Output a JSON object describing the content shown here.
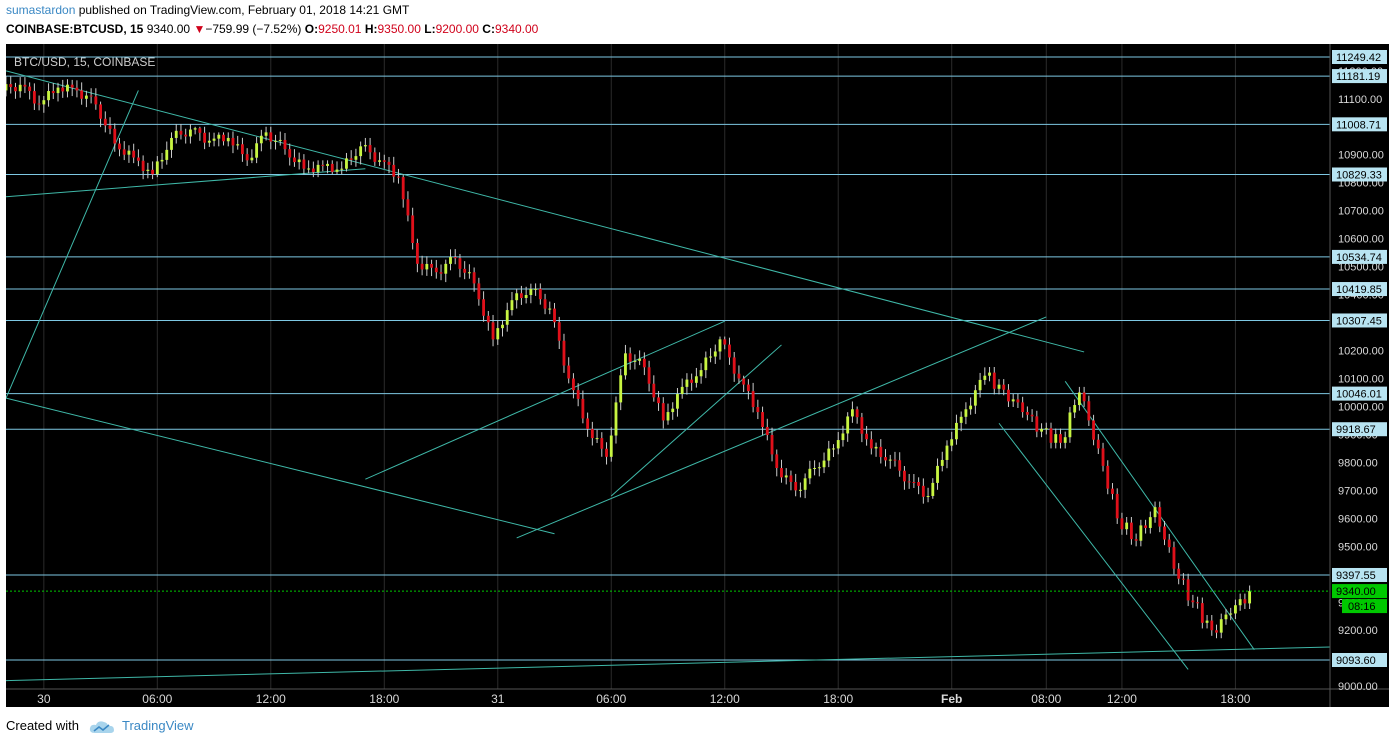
{
  "header": {
    "author": "sumastardon",
    "published_text": " published on TradingView.com, February 01, 2018 14:21 GMT",
    "symbol": "COINBASE:BTCUSD, 15",
    "last": "9340.00",
    "change_arrow": "▼",
    "change": "−759.99 (−7.52%)",
    "o_label": "O:",
    "o_value": "9250.01",
    "h_label": "H:",
    "h_value": "9350.00",
    "l_label": "L:",
    "l_value": "9200.00",
    "c_label": "C:",
    "c_value": "9340.00"
  },
  "footer": {
    "created_with": "Created with",
    "brand": "TradingView"
  },
  "colors": {
    "background": "#000000",
    "grid": "#2b2b2b",
    "hline": "#7ec8e3",
    "trendline": "#3fb8a8",
    "up_candle": "#c8f542",
    "down_candle": "#e0101a",
    "wick": "#cccccc",
    "price_line": "#00c800",
    "label_bg": "#b8e4f2"
  },
  "chart_data": {
    "type": "candlestick",
    "title": "BTC/USD, 15, COINBASE",
    "ylim": [
      9000,
      11300
    ],
    "y_ticks": [
      9000,
      9200,
      9300,
      9400,
      9500,
      9600,
      9700,
      9800,
      9900,
      10000,
      10100,
      10200,
      10300,
      10400,
      10500,
      10600,
      10700,
      10800,
      10900,
      11000,
      11100,
      11200
    ],
    "y_tick_labels": [
      "9000.00",
      "9200.00",
      "9300.00",
      "9400.00",
      "9500.00",
      "9600.00",
      "9700.00",
      "9800.00",
      "9900.00",
      "10000.00",
      "10100.00",
      "10200.00",
      "10300.00",
      "10400.00",
      "10500.00",
      "10600.00",
      "10700.00",
      "10800.00",
      "10900.00",
      "11000.00",
      "11100.00",
      "11200.00"
    ],
    "x_tick_labels": [
      "30",
      "06:00",
      "12:00",
      "18:00",
      "31",
      "06:00",
      "12:00",
      "18:00",
      "Feb",
      "08:00",
      "12:00",
      "18:00"
    ],
    "x_tick_hours": [
      0,
      6,
      12,
      18,
      24,
      30,
      36,
      42,
      48,
      53,
      57,
      63
    ],
    "x_range_hours": [
      -2,
      68
    ],
    "horizontal_levels": [
      11249.42,
      11181.19,
      11008.71,
      10829.33,
      10534.74,
      10419.85,
      10307.45,
      10046.01,
      9918.67,
      9397.55,
      9093.6
    ],
    "horizontal_level_labels": [
      "11249.42",
      "11181.19",
      "11008.71",
      "10829.33",
      "10534.74",
      "10419.85",
      "10307.45",
      "10046.01",
      "9918.67",
      "9397.55",
      "9093.60"
    ],
    "last_price": 9340.0,
    "last_price_label": "9340.00",
    "countdown_label": "08:16",
    "trendlines": [
      {
        "h1": -2,
        "p1": 11200,
        "h2": 55,
        "p2": 10195
      },
      {
        "h1": -2,
        "p1": 10750,
        "h2": 17,
        "p2": 10850
      },
      {
        "h1": -2,
        "p1": 10030,
        "h2": 27,
        "p2": 9545
      },
      {
        "h1": -2,
        "p1": 10030,
        "h2": 5,
        "p2": 11130
      },
      {
        "h1": 25,
        "p1": 9530,
        "h2": 53,
        "p2": 10320
      },
      {
        "h1": 17,
        "p1": 9740,
        "h2": 36,
        "p2": 10305
      },
      {
        "h1": 30,
        "p1": 9680,
        "h2": 39,
        "p2": 10220
      },
      {
        "h1": 50.5,
        "p1": 9940,
        "h2": 60.5,
        "p2": 9060
      },
      {
        "h1": 54,
        "p1": 10090,
        "h2": 64,
        "p2": 9130
      },
      {
        "h1": -2,
        "p1": 9020,
        "h2": 68,
        "p2": 9140
      }
    ],
    "candles_hourly": [
      {
        "h": -2,
        "o": 11130,
        "c": 11150,
        "hi": 11200,
        "lo": 11100
      },
      {
        "h": -1,
        "o": 11150,
        "c": 11080,
        "hi": 11180,
        "lo": 11030
      },
      {
        "h": 0,
        "o": 11080,
        "c": 11140,
        "hi": 11170,
        "lo": 11050
      },
      {
        "h": 1,
        "o": 11140,
        "c": 11130,
        "hi": 11170,
        "lo": 11100
      },
      {
        "h": 2,
        "o": 11130,
        "c": 11080,
        "hi": 11160,
        "lo": 11050
      },
      {
        "h": 3,
        "o": 11080,
        "c": 10940,
        "hi": 11090,
        "lo": 10880
      },
      {
        "h": 4,
        "o": 10940,
        "c": 10890,
        "hi": 10960,
        "lo": 10870
      },
      {
        "h": 5,
        "o": 10890,
        "c": 10830,
        "hi": 10920,
        "lo": 10810
      },
      {
        "h": 6,
        "o": 10830,
        "c": 10960,
        "hi": 10980,
        "lo": 10820
      },
      {
        "h": 7,
        "o": 10960,
        "c": 10990,
        "hi": 11010,
        "lo": 10940
      },
      {
        "h": 8,
        "o": 10990,
        "c": 10950,
        "hi": 11000,
        "lo": 10920
      },
      {
        "h": 9,
        "o": 10950,
        "c": 10960,
        "hi": 10980,
        "lo": 10930
      },
      {
        "h": 10,
        "o": 10960,
        "c": 10880,
        "hi": 10990,
        "lo": 10860
      },
      {
        "h": 11,
        "o": 10880,
        "c": 10980,
        "hi": 11000,
        "lo": 10870
      },
      {
        "h": 12,
        "o": 10980,
        "c": 10920,
        "hi": 11000,
        "lo": 10900
      },
      {
        "h": 13,
        "o": 10920,
        "c": 10850,
        "hi": 10940,
        "lo": 10830
      },
      {
        "h": 14,
        "o": 10850,
        "c": 10860,
        "hi": 10880,
        "lo": 10820
      },
      {
        "h": 15,
        "o": 10860,
        "c": 10850,
        "hi": 10880,
        "lo": 10830
      },
      {
        "h": 16,
        "o": 10850,
        "c": 10930,
        "hi": 10960,
        "lo": 10840
      },
      {
        "h": 17,
        "o": 10930,
        "c": 10880,
        "hi": 10960,
        "lo": 10860
      },
      {
        "h": 18,
        "o": 10880,
        "c": 10820,
        "hi": 10900,
        "lo": 10780
      },
      {
        "h": 19,
        "o": 10820,
        "c": 10510,
        "hi": 10830,
        "lo": 10450
      },
      {
        "h": 20,
        "o": 10510,
        "c": 10480,
        "hi": 10560,
        "lo": 10390
      },
      {
        "h": 21,
        "o": 10480,
        "c": 10530,
        "hi": 10570,
        "lo": 10410
      },
      {
        "h": 22,
        "o": 10530,
        "c": 10440,
        "hi": 10560,
        "lo": 10390
      },
      {
        "h": 23,
        "o": 10440,
        "c": 10240,
        "hi": 10460,
        "lo": 10210
      },
      {
        "h": 24,
        "o": 10240,
        "c": 10380,
        "hi": 10430,
        "lo": 10220
      },
      {
        "h": 25,
        "o": 10380,
        "c": 10420,
        "hi": 10440,
        "lo": 10340
      },
      {
        "h": 26,
        "o": 10420,
        "c": 10350,
        "hi": 10440,
        "lo": 10330
      },
      {
        "h": 27,
        "o": 10350,
        "c": 10100,
        "hi": 10370,
        "lo": 9940
      },
      {
        "h": 28,
        "o": 10100,
        "c": 9920,
        "hi": 10120,
        "lo": 9780
      },
      {
        "h": 29,
        "o": 9920,
        "c": 9820,
        "hi": 10060,
        "lo": 9720
      },
      {
        "h": 30,
        "o": 9820,
        "c": 10190,
        "hi": 10340,
        "lo": 9800
      },
      {
        "h": 31,
        "o": 10190,
        "c": 10140,
        "hi": 10260,
        "lo": 10050
      },
      {
        "h": 32,
        "o": 10140,
        "c": 9950,
        "hi": 10180,
        "lo": 9900
      },
      {
        "h": 33,
        "o": 9950,
        "c": 10070,
        "hi": 10140,
        "lo": 9930
      }
    ],
    "candles_hourly_note": "",
    "candles_tail": [
      {
        "h": 34,
        "o": 10070,
        "c": 10130,
        "hi": 10180,
        "lo": 10040
      },
      {
        "h": 35,
        "o": 10130,
        "c": 10240,
        "hi": 10250,
        "lo": 10100
      },
      {
        "h": 36,
        "o": 10240,
        "c": 10100,
        "hi": 10250,
        "lo": 10060
      },
      {
        "h": 37,
        "o": 10100,
        "c": 9980,
        "hi": 10110,
        "lo": 9940
      },
      {
        "h": 38,
        "o": 9980,
        "c": 9780,
        "hi": 10000,
        "lo": 9680
      },
      {
        "h": 39,
        "o": 9780,
        "c": 9700,
        "hi": 9810,
        "lo": 9620
      },
      {
        "h": 40,
        "o": 9700,
        "c": 9780,
        "hi": 9840,
        "lo": 9600
      },
      {
        "h": 41,
        "o": 9780,
        "c": 9850,
        "hi": 9880,
        "lo": 9700
      },
      {
        "h": 42,
        "o": 9850,
        "c": 9990,
        "hi": 10040,
        "lo": 9820
      },
      {
        "h": 43,
        "o": 9990,
        "c": 9850,
        "hi": 10000,
        "lo": 9790
      },
      {
        "h": 44,
        "o": 9850,
        "c": 9810,
        "hi": 9900,
        "lo": 9760
      },
      {
        "h": 45,
        "o": 9810,
        "c": 9730,
        "hi": 9840,
        "lo": 9700
      },
      {
        "h": 46,
        "o": 9730,
        "c": 9680,
        "hi": 9790,
        "lo": 9650
      },
      {
        "h": 47,
        "o": 9680,
        "c": 9860,
        "hi": 9900,
        "lo": 9670
      },
      {
        "h": 48,
        "o": 9860,
        "c": 9990,
        "hi": 10040,
        "lo": 9840
      },
      {
        "h": 49,
        "o": 9990,
        "c": 10110,
        "hi": 10140,
        "lo": 9960
      }
    ]
  }
}
